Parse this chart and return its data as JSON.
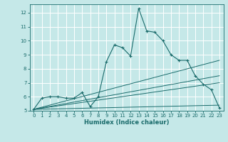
{
  "xlabel": "Humidex (Indice chaleur)",
  "bg_color": "#c5e8e8",
  "grid_color": "#ffffff",
  "line_color": "#1a6b6b",
  "xlim": [
    -0.5,
    23.5
  ],
  "ylim": [
    5,
    12.6
  ],
  "xticks": [
    0,
    1,
    2,
    3,
    4,
    5,
    6,
    7,
    8,
    9,
    10,
    11,
    12,
    13,
    14,
    15,
    16,
    17,
    18,
    19,
    20,
    21,
    22,
    23
  ],
  "yticks": [
    5,
    6,
    7,
    8,
    9,
    10,
    11,
    12
  ],
  "main_line": {
    "x": [
      0,
      1,
      2,
      3,
      4,
      5,
      6,
      7,
      8,
      9,
      10,
      11,
      12,
      13,
      14,
      15,
      16,
      17,
      18,
      19,
      20,
      21,
      22,
      23
    ],
    "y": [
      5.1,
      5.9,
      6.0,
      6.0,
      5.9,
      5.9,
      6.3,
      5.3,
      6.0,
      8.5,
      9.7,
      9.5,
      8.9,
      12.3,
      10.7,
      10.6,
      10.0,
      9.0,
      8.6,
      8.6,
      7.5,
      6.9,
      6.5,
      5.2
    ]
  },
  "trend_lines": [
    {
      "x": [
        0,
        23
      ],
      "y": [
        5.1,
        8.6
      ]
    },
    {
      "x": [
        0,
        23
      ],
      "y": [
        5.1,
        7.5
      ]
    },
    {
      "x": [
        0,
        23
      ],
      "y": [
        5.1,
        7.0
      ]
    },
    {
      "x": [
        0,
        23
      ],
      "y": [
        5.1,
        5.4
      ]
    }
  ]
}
